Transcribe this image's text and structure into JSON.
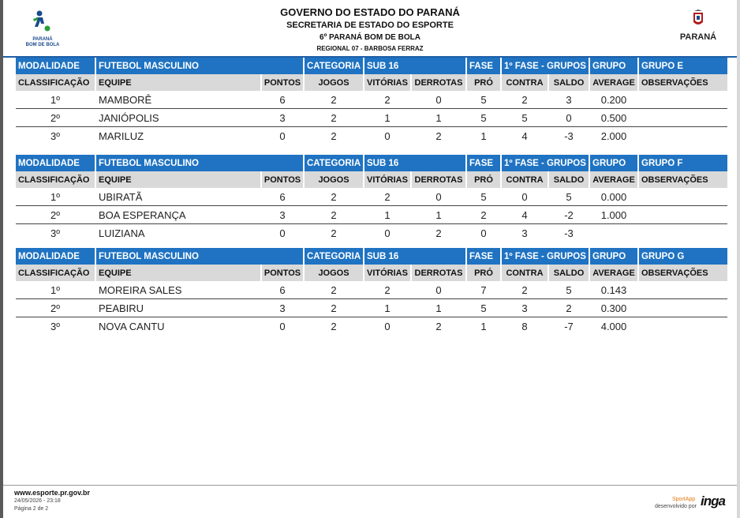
{
  "header": {
    "title": "GOVERNO DO ESTADO DO PARANÁ",
    "subtitle": "SECRETARIA DE ESTADO DO ESPORTE",
    "event": "6º PARANÁ BOM DE BOLA",
    "regional": "REGIONAL 07 - BARBOSA FERRAZ",
    "logo_left_text": "PARANÁ\nBOM DE BOLA",
    "logo_right_text": "PARANÁ"
  },
  "group_labels": {
    "modalidade": "MODALIDADE",
    "categoria": "CATEGORIA",
    "fase": "FASE",
    "grupo": "GRUPO"
  },
  "columns": {
    "classificacao": "CLASSIFICAÇÃO",
    "equipe": "EQUIPE",
    "pontos": "PONTOS",
    "jogos": "JOGOS",
    "vitorias": "VITÓRIAS",
    "derrotas": "DERROTAS",
    "pro": "PRÓ",
    "contra": "CONTRA",
    "saldo": "SALDO",
    "average": "AVERAGE",
    "observacoes": "OBSERVAÇÕES"
  },
  "groups": [
    {
      "modalidade": "FUTEBOL MASCULINO",
      "categoria": "SUB 16",
      "fase": "1º FASE - GRUPOS",
      "grupo": "GRUPO E",
      "rows": [
        {
          "pos": "1º",
          "equipe": "MAMBORÊ",
          "pontos": "6",
          "jogos": "2",
          "vitorias": "2",
          "derrotas": "0",
          "pro": "5",
          "contra": "2",
          "saldo": "3",
          "average": "0.200",
          "obs": ""
        },
        {
          "pos": "2º",
          "equipe": "JANIÓPOLIS",
          "pontos": "3",
          "jogos": "2",
          "vitorias": "1",
          "derrotas": "1",
          "pro": "5",
          "contra": "5",
          "saldo": "0",
          "average": "0.500",
          "obs": ""
        },
        {
          "pos": "3º",
          "equipe": "MARILUZ",
          "pontos": "0",
          "jogos": "2",
          "vitorias": "0",
          "derrotas": "2",
          "pro": "1",
          "contra": "4",
          "saldo": "-3",
          "average": "2.000",
          "obs": ""
        }
      ]
    },
    {
      "modalidade": "FUTEBOL MASCULINO",
      "categoria": "SUB 16",
      "fase": "1º FASE - GRUPOS",
      "grupo": "GRUPO F",
      "rows": [
        {
          "pos": "1º",
          "equipe": "UBIRATÃ",
          "pontos": "6",
          "jogos": "2",
          "vitorias": "2",
          "derrotas": "0",
          "pro": "5",
          "contra": "0",
          "saldo": "5",
          "average": "0.000",
          "obs": ""
        },
        {
          "pos": "2º",
          "equipe": "BOA ESPERANÇA",
          "pontos": "3",
          "jogos": "2",
          "vitorias": "1",
          "derrotas": "1",
          "pro": "2",
          "contra": "4",
          "saldo": "-2",
          "average": "1.000",
          "obs": ""
        },
        {
          "pos": "3º",
          "equipe": "LUIZIANA",
          "pontos": "0",
          "jogos": "2",
          "vitorias": "0",
          "derrotas": "2",
          "pro": "0",
          "contra": "3",
          "saldo": "-3",
          "average": "",
          "obs": ""
        }
      ]
    },
    {
      "modalidade": "FUTEBOL MASCULINO",
      "categoria": "SUB 16",
      "fase": "1º FASE - GRUPOS",
      "grupo": "GRUPO G",
      "rows": [
        {
          "pos": "1º",
          "equipe": "MOREIRA SALES",
          "pontos": "6",
          "jogos": "2",
          "vitorias": "2",
          "derrotas": "0",
          "pro": "7",
          "contra": "2",
          "saldo": "5",
          "average": "0.143",
          "obs": ""
        },
        {
          "pos": "2º",
          "equipe": "PEABIRU",
          "pontos": "3",
          "jogos": "2",
          "vitorias": "1",
          "derrotas": "1",
          "pro": "5",
          "contra": "3",
          "saldo": "2",
          "average": "0.300",
          "obs": ""
        },
        {
          "pos": "3º",
          "equipe": "NOVA CANTU",
          "pontos": "0",
          "jogos": "2",
          "vitorias": "0",
          "derrotas": "2",
          "pro": "1",
          "contra": "8",
          "saldo": "-7",
          "average": "4.000",
          "obs": ""
        }
      ]
    }
  ],
  "footer": {
    "url": "www.esporte.pr.gov.br",
    "date": "24/05/2026 - 23:18",
    "page": "Página 2 de 2",
    "sportapp": "SportApp",
    "developed_by": "desenvolvido por",
    "brand": "inga"
  },
  "colors": {
    "header_blue": "#1f73c2",
    "subheader_gray": "#d9d9d9"
  }
}
